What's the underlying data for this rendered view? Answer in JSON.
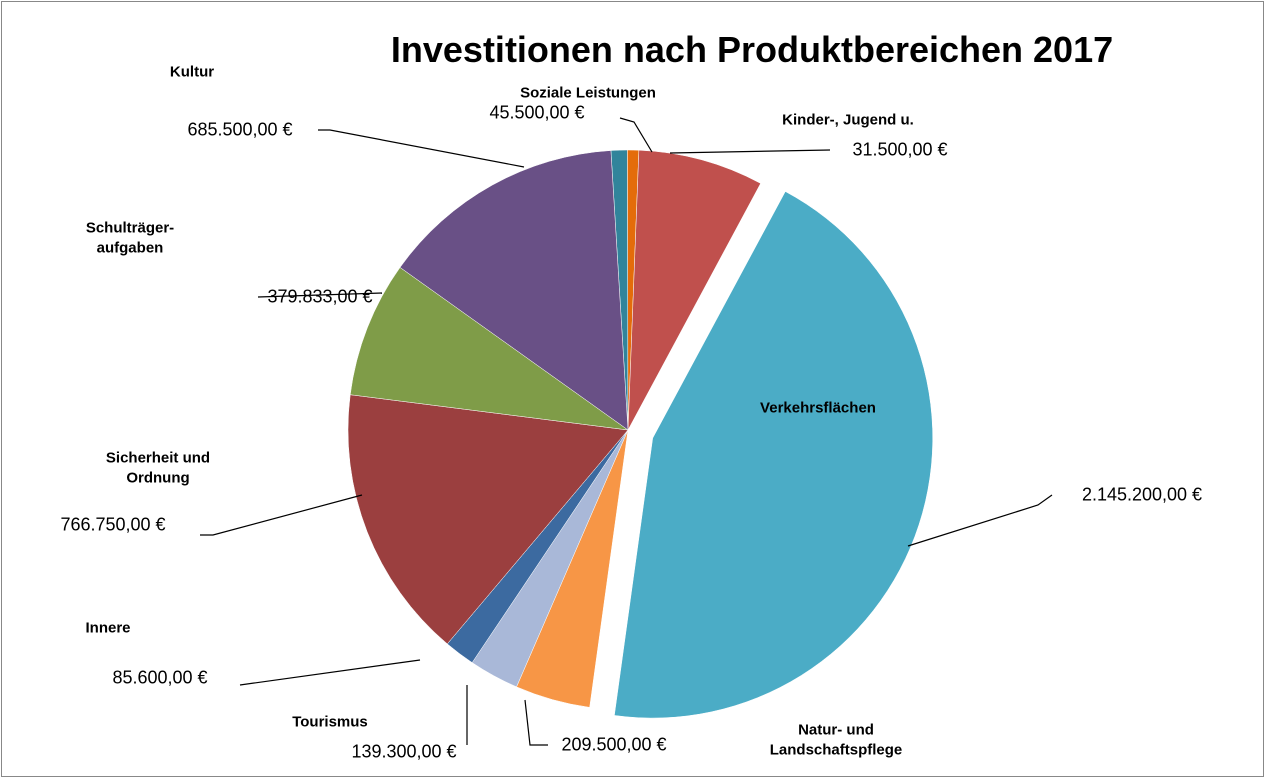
{
  "chart_data": {
    "type": "pie",
    "title": "Investitionen nach Produktbereichen 2017",
    "categories": [
      "Soziale Leistungen",
      "Kinder-, Jugend u.",
      null,
      "Verkehrsflächen",
      "Natur- und\nLandschaftspflege",
      "Tourismus",
      "Innere",
      "Sicherheit und\nOrdnung",
      "Schulträger-\naufgaben",
      "Kultur"
    ],
    "values": [
      45500,
      31500,
      350000,
      2145200,
      209500,
      139300,
      85600,
      766750,
      379833,
      685500
    ],
    "value_labels": [
      "45.500,00 €",
      "31.500,00 €",
      null,
      "2.145.200,00 €",
      "209.500,00 €",
      "139.300,00 €",
      "85.600,00 €",
      "766.750,00 €",
      "379.833,00 €",
      "685.500,00 €"
    ],
    "colors": [
      "#31849b",
      "#e46c0a",
      "#c0504d",
      "#4bacc6",
      "#f79646",
      "#a9b8d8",
      "#3c6aa0",
      "#9b3f3f",
      "#7f9c48",
      "#695086"
    ],
    "exploded": [
      false,
      false,
      false,
      true,
      false,
      false,
      false,
      false,
      false,
      false
    ]
  }
}
